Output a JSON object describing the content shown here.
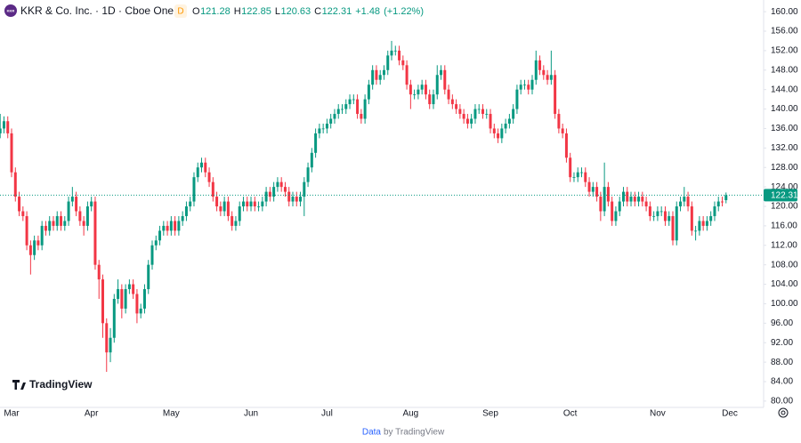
{
  "chart_data": {
    "type": "candlestick",
    "title": "KKR & Co. Inc. · 1D · Cboe One",
    "logo_text": "KKR",
    "badge": "D",
    "ohlc_labels": [
      "O",
      "H",
      "L",
      "C"
    ],
    "change": "+1.48",
    "change_percent": "(+1.22%)",
    "watermark": "TradingView",
    "footer_link": "Data",
    "footer_text": "by TradingView",
    "up_color": "#089981",
    "down_color": "#f23645",
    "ylim": [
      78.7,
      162.4
    ],
    "yticks": [
      {
        "value": 80,
        "label": "80.00"
      },
      {
        "value": 84,
        "label": "84.00"
      },
      {
        "value": 88,
        "label": "88.00"
      },
      {
        "value": 92,
        "label": "92.00"
      },
      {
        "value": 96,
        "label": "96.00"
      },
      {
        "value": 100,
        "label": "100.00"
      },
      {
        "value": 104,
        "label": "104.00"
      },
      {
        "value": 108,
        "label": "108.00"
      },
      {
        "value": 112,
        "label": "112.00"
      },
      {
        "value": 116,
        "label": "116.00"
      },
      {
        "value": 120,
        "label": "120.00"
      },
      {
        "value": 124,
        "label": "124.00"
      },
      {
        "value": 128,
        "label": "128.00"
      },
      {
        "value": 132,
        "label": "132.00"
      },
      {
        "value": 136,
        "label": "136.00"
      },
      {
        "value": 140,
        "label": "140.00"
      },
      {
        "value": 144,
        "label": "144.00"
      },
      {
        "value": 148,
        "label": "148.00"
      },
      {
        "value": 152,
        "label": "152.00"
      },
      {
        "value": 156,
        "label": "156.00"
      },
      {
        "value": 160,
        "label": "160.00"
      }
    ],
    "categories": [
      null,
      null,
      null,
      "Mar",
      null,
      null,
      null,
      null,
      null,
      null,
      null,
      null,
      null,
      null,
      null,
      null,
      null,
      null,
      null,
      null,
      null,
      null,
      null,
      null,
      "Apr",
      null,
      null,
      null,
      null,
      null,
      null,
      null,
      null,
      null,
      null,
      null,
      null,
      null,
      null,
      null,
      null,
      null,
      null,
      null,
      null,
      "May",
      null,
      null,
      null,
      null,
      null,
      null,
      null,
      null,
      null,
      null,
      null,
      null,
      null,
      null,
      null,
      null,
      null,
      null,
      null,
      null,
      "Jun",
      null,
      null,
      null,
      null,
      null,
      null,
      null,
      null,
      null,
      null,
      null,
      null,
      null,
      null,
      null,
      null,
      null,
      null,
      null,
      "Jul",
      null,
      null,
      null,
      null,
      null,
      null,
      null,
      null,
      null,
      null,
      null,
      null,
      null,
      null,
      null,
      null,
      null,
      null,
      null,
      null,
      null,
      "Aug",
      null,
      null,
      null,
      null,
      null,
      null,
      null,
      null,
      null,
      null,
      null,
      null,
      null,
      null,
      null,
      null,
      null,
      null,
      null,
      null,
      "Sep",
      null,
      null,
      null,
      null,
      null,
      null,
      null,
      null,
      null,
      null,
      null,
      null,
      null,
      null,
      null,
      null,
      null,
      null,
      null,
      null,
      "Oct",
      null,
      null,
      null,
      null,
      null,
      null,
      null,
      null,
      null,
      null,
      null,
      null,
      null,
      null,
      null,
      null,
      null,
      null,
      null,
      null,
      null,
      null,
      "Nov",
      null,
      null,
      null,
      null,
      null,
      null,
      null,
      null,
      null,
      null,
      null,
      null,
      null,
      null,
      null,
      null,
      null,
      null,
      "Dec"
    ],
    "open": [
      135,
      136,
      137.5,
      135,
      127,
      122,
      119,
      118,
      112,
      110,
      113,
      112,
      116,
      115,
      117,
      116,
      118,
      116,
      117,
      121,
      122,
      119,
      117,
      116,
      120,
      121,
      108,
      105,
      96,
      90,
      93,
      101,
      103,
      99,
      103,
      104,
      102,
      98,
      99,
      103,
      108,
      112,
      113,
      115,
      116,
      115,
      117,
      115,
      117,
      118,
      120,
      121,
      126,
      128,
      129,
      127,
      125,
      122,
      120,
      119,
      121,
      118,
      116,
      117,
      120,
      121,
      120,
      121,
      120,
      120,
      121,
      123,
      122,
      124,
      125,
      124,
      123,
      121,
      122,
      121,
      122,
      125,
      128,
      131,
      135,
      136,
      136,
      137,
      138,
      139,
      140,
      140,
      141,
      142,
      142,
      139,
      138,
      142,
      145,
      148,
      146,
      147,
      148,
      151,
      152,
      152,
      150,
      149,
      145,
      143,
      143,
      144,
      145,
      143,
      141,
      143,
      147,
      148,
      144,
      142,
      141,
      140,
      139,
      138,
      137,
      138,
      140,
      140,
      139,
      139,
      136,
      135,
      134,
      136,
      137,
      138,
      140,
      144,
      145,
      145,
      144,
      146,
      150,
      148,
      147,
      146,
      147,
      139,
      136,
      135,
      130,
      126,
      126,
      127,
      127,
      125,
      123,
      124,
      122,
      119,
      124,
      121,
      117,
      119,
      121,
      123,
      121,
      122,
      121,
      122,
      121,
      120,
      118,
      118,
      119,
      119,
      117,
      118,
      113,
      120,
      121,
      122,
      120,
      115,
      115,
      117,
      116,
      117,
      118,
      120,
      121,
      121.28,
      null
    ],
    "high": [
      139,
      138.5,
      138.5,
      136,
      128,
      123,
      120,
      119,
      113,
      114,
      114,
      117,
      117,
      118,
      118,
      119,
      119,
      118,
      122,
      124,
      123,
      120,
      118,
      121,
      122,
      122,
      109,
      106,
      97,
      95,
      102,
      105,
      104,
      104,
      105,
      105,
      103,
      100,
      104,
      109,
      113,
      114,
      116,
      117,
      117,
      118,
      118,
      118,
      119,
      121,
      122,
      127,
      129,
      130,
      130,
      128,
      126,
      123,
      121,
      122,
      122,
      119,
      118,
      121,
      122,
      122,
      122,
      122,
      121,
      122,
      124,
      124,
      125,
      126,
      126,
      125,
      124,
      123,
      123,
      123,
      126,
      129,
      132,
      136,
      137,
      137,
      138,
      139,
      140,
      141,
      141,
      142,
      143,
      143,
      143,
      140,
      143,
      146,
      149,
      149,
      148,
      149,
      152,
      154,
      153,
      153,
      151,
      150,
      146,
      144,
      145,
      146,
      146,
      144,
      144,
      149,
      149,
      149,
      145,
      143,
      142,
      141,
      140,
      139,
      139,
      141,
      141,
      141,
      140,
      140,
      137,
      136,
      137,
      138,
      139,
      141,
      145,
      146,
      146,
      146,
      147,
      152,
      151,
      149,
      148,
      152,
      148,
      140,
      137,
      136,
      131,
      127,
      128,
      128,
      128,
      126,
      125,
      125,
      123,
      129,
      125,
      122,
      120,
      122,
      124,
      124,
      123,
      123,
      123,
      123,
      122,
      121,
      119,
      120,
      120,
      120,
      119,
      119,
      121,
      122,
      124,
      123,
      121,
      116,
      118,
      118,
      118,
      119,
      121,
      122,
      122,
      122.85,
      null
    ],
    "low": [
      134,
      135,
      134,
      126,
      121,
      118,
      117,
      111,
      106,
      109,
      111,
      111,
      114,
      114,
      115,
      115,
      115,
      115,
      116,
      120,
      118,
      116,
      114,
      115,
      119,
      107,
      101,
      93,
      86,
      88,
      92,
      100,
      97,
      98,
      102,
      101,
      96,
      97,
      98,
      102,
      107,
      111,
      112,
      114,
      114,
      114,
      114,
      114,
      116,
      117,
      119,
      120,
      125,
      127,
      126,
      124,
      121,
      119,
      118,
      118,
      117,
      115,
      115,
      116,
      119,
      119,
      119,
      119,
      119,
      119,
      120,
      121,
      121,
      123,
      123,
      122,
      120,
      120,
      120,
      120,
      118,
      124,
      127,
      130,
      134,
      135,
      135,
      136,
      137,
      138,
      139,
      139,
      140,
      141,
      138,
      137,
      137,
      141,
      144,
      145,
      145,
      146,
      147,
      150,
      151,
      149,
      148,
      144,
      140,
      142,
      142,
      143,
      142,
      140,
      140,
      142,
      146,
      143,
      141,
      140,
      139,
      138,
      137,
      136,
      136,
      137,
      139,
      138,
      138,
      135,
      134,
      133,
      133,
      135,
      136,
      137,
      139,
      143,
      144,
      143,
      143,
      145,
      147,
      146,
      145,
      145,
      138,
      135,
      134,
      129,
      125,
      125,
      125,
      126,
      124,
      122,
      122,
      121,
      117,
      118,
      120,
      116,
      116,
      118,
      120,
      120,
      120,
      120,
      120,
      120,
      119,
      117,
      117,
      117,
      118,
      116,
      116,
      112,
      112,
      119,
      120,
      119,
      114,
      113,
      114,
      115,
      115,
      116,
      117,
      119,
      120,
      120.63,
      null
    ],
    "close": [
      136,
      137.5,
      135,
      127,
      122,
      119,
      118,
      112,
      110,
      113,
      112,
      116,
      115,
      117,
      116,
      118,
      116,
      117,
      121,
      122,
      119,
      117,
      116,
      120,
      121,
      108,
      105,
      96,
      90,
      93,
      101,
      103,
      99,
      103,
      104,
      102,
      98,
      99,
      103,
      108,
      112,
      113,
      115,
      116,
      115,
      117,
      115,
      117,
      118,
      120,
      121,
      126,
      128,
      129,
      127,
      125,
      122,
      120,
      119,
      121,
      118,
      116,
      117,
      120,
      121,
      120,
      121,
      120,
      120,
      121,
      123,
      122,
      124,
      125,
      124,
      123,
      121,
      122,
      121,
      122,
      125,
      128,
      131,
      135,
      136,
      136,
      137,
      138,
      139,
      140,
      140,
      141,
      142,
      142,
      139,
      138,
      142,
      145,
      148,
      146,
      147,
      148,
      151,
      152,
      152,
      150,
      149,
      145,
      143,
      143,
      144,
      145,
      143,
      141,
      143,
      147,
      148,
      144,
      142,
      141,
      140,
      139,
      138,
      137,
      138,
      140,
      140,
      139,
      139,
      136,
      135,
      134,
      136,
      137,
      138,
      140,
      144,
      145,
      145,
      144,
      146,
      150,
      148,
      147,
      146,
      147,
      139,
      136,
      135,
      130,
      126,
      126,
      127,
      127,
      125,
      123,
      124,
      122,
      119,
      124,
      121,
      117,
      119,
      121,
      123,
      121,
      122,
      121,
      122,
      121,
      120,
      118,
      118,
      119,
      119,
      117,
      118,
      113,
      120,
      121,
      122,
      120,
      115,
      115,
      117,
      116,
      117,
      118,
      120,
      121,
      120.83,
      122.31,
      null
    ]
  }
}
